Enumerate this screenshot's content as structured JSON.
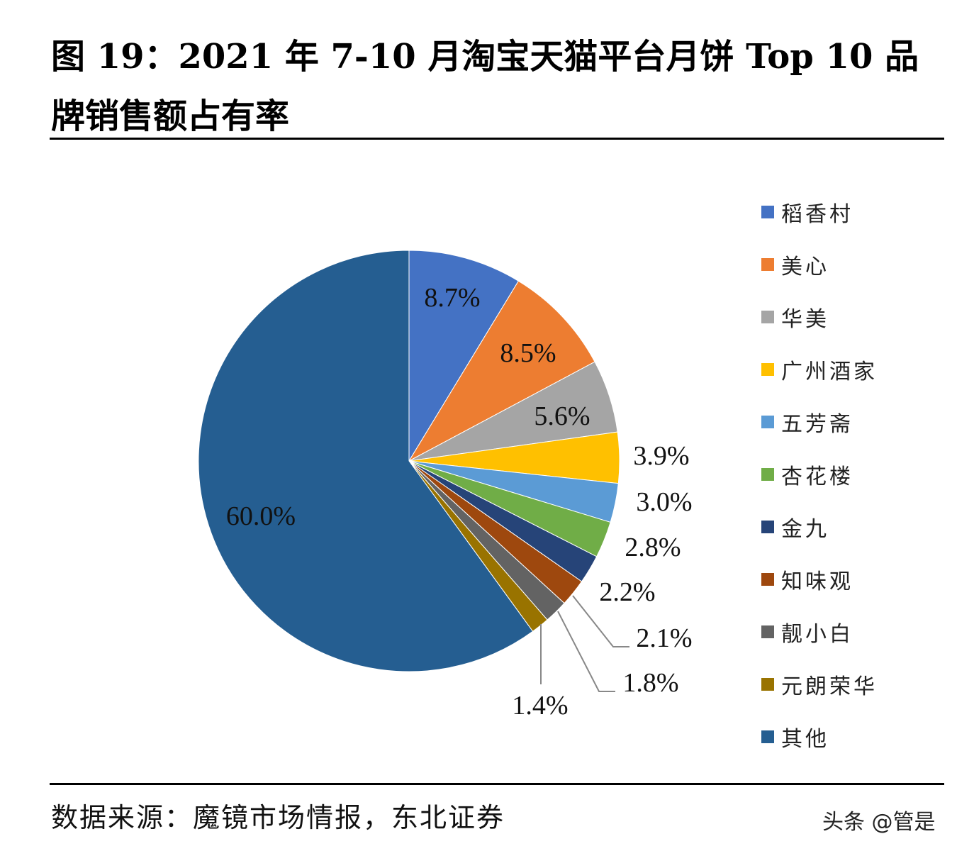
{
  "title": "图 19：2021 年 7-10 月淘宝天猫平台月饼 Top 10 品牌销售额占有率",
  "source": "数据来源：魔镜市场情报，东北证券",
  "watermark": "头条 @管是",
  "chart_data": {
    "type": "pie",
    "title": "2021 年 7-10 月淘宝天猫平台月饼 Top 10 品牌销售额占有率",
    "unit": "%",
    "start_angle": "12 o'clock, clockwise",
    "legend_position": "right",
    "slices": [
      {
        "name": "稻香村",
        "value": 8.7,
        "label": "8.7%",
        "color": "#4472C4"
      },
      {
        "name": "美心",
        "value": 8.5,
        "label": "8.5%",
        "color": "#ED7D31"
      },
      {
        "name": "华美",
        "value": 5.6,
        "label": "5.6%",
        "color": "#A5A5A5"
      },
      {
        "name": "广州酒家",
        "value": 3.9,
        "label": "3.9%",
        "color": "#FFC000"
      },
      {
        "name": "五芳斋",
        "value": 3.0,
        "label": "3.0%",
        "color": "#5B9BD5"
      },
      {
        "name": "杏花楼",
        "value": 2.8,
        "label": "2.8%",
        "color": "#70AD47"
      },
      {
        "name": "金九",
        "value": 2.2,
        "label": "2.2%",
        "color": "#264478"
      },
      {
        "name": "知味观",
        "value": 2.1,
        "label": "2.1%",
        "color": "#9E480E"
      },
      {
        "name": "靓小白",
        "value": 1.8,
        "label": "1.8%",
        "color": "#636363"
      },
      {
        "name": "元朗荣华",
        "value": 1.4,
        "label": "1.4%",
        "color": "#997300"
      },
      {
        "name": "其他",
        "value": 60.0,
        "label": "60.0%",
        "color": "#255E91"
      }
    ]
  }
}
